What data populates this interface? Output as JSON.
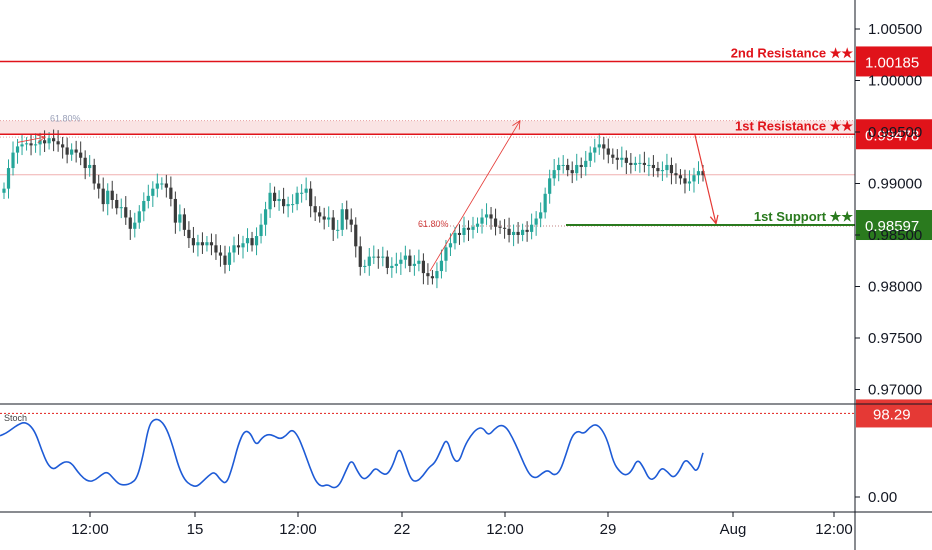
{
  "chart_data": {
    "type": "candlestick",
    "price_axis": {
      "ticks": [
        "1.00500",
        "1.00000",
        "0.99500",
        "0.99000",
        "0.98500",
        "0.98000",
        "0.97500",
        "0.97000"
      ],
      "tick_values": [
        1.005,
        1.0,
        0.995,
        0.99,
        0.985,
        0.98,
        0.975,
        0.97
      ],
      "range": [
        0.9688,
        1.0082
      ]
    },
    "time_axis": {
      "ticks": [
        "12:00",
        "15",
        "12:00",
        "22",
        "12:00",
        "29",
        "Aug",
        "12:00"
      ]
    },
    "levels": [
      {
        "name": "2nd Resistance ★★",
        "price": 1.00185,
        "tag": "1.00185",
        "color": "#e0131a"
      },
      {
        "name": "1st Resistance ★★",
        "price": 0.99478,
        "tag": "0.99478",
        "color": "#e0131a"
      },
      {
        "name": "1st Support ★★",
        "price": 0.98597,
        "tag": "0.98597",
        "color": "#2a7a1e"
      }
    ],
    "fib_labels": [
      "61.80%",
      "61.80%"
    ],
    "candles_close": [
      0.9895,
      0.9915,
      0.993,
      0.9936,
      0.9938,
      0.9939,
      0.9937,
      0.9938,
      0.9942,
      0.9939,
      0.9944,
      0.9941,
      0.9938,
      0.9935,
      0.9928,
      0.9933,
      0.993,
      0.9925,
      0.9915,
      0.9918,
      0.99,
      0.9895,
      0.988,
      0.9893,
      0.9884,
      0.9876,
      0.9877,
      0.9867,
      0.9856,
      0.9862,
      0.9873,
      0.9883,
      0.9888,
      0.9895,
      0.99,
      0.99,
      0.9896,
      0.9885,
      0.9862,
      0.987,
      0.9855,
      0.9847,
      0.984,
      0.9843,
      0.984,
      0.9843,
      0.984,
      0.9833,
      0.983,
      0.9821,
      0.9833,
      0.984,
      0.9838,
      0.9842,
      0.9847,
      0.984,
      0.9849,
      0.986,
      0.9875,
      0.9891,
      0.9883,
      0.9885,
      0.9878,
      0.988,
      0.988,
      0.9891,
      0.9891,
      0.9895,
      0.9878,
      0.9872,
      0.9868,
      0.9865,
      0.9867,
      0.9855,
      0.9855,
      0.9875,
      0.9865,
      0.986,
      0.9839,
      0.9819,
      0.982,
      0.9829,
      0.9829,
      0.9828,
      0.9829,
      0.9818,
      0.982,
      0.9822,
      0.9826,
      0.983,
      0.982,
      0.9822,
      0.9825,
      0.9813,
      0.981,
      0.9808,
      0.9815,
      0.9825,
      0.9838,
      0.9842,
      0.9852,
      0.985,
      0.9857,
      0.9855,
      0.9858,
      0.9861,
      0.9867,
      0.987,
      0.9866,
      0.9858,
      0.9857,
      0.9856,
      0.985,
      0.9853,
      0.985,
      0.9855,
      0.9853,
      0.986,
      0.9866,
      0.9872,
      0.989,
      0.9905,
      0.9913,
      0.9918,
      0.9918,
      0.9913,
      0.991,
      0.9918,
      0.9916,
      0.9922,
      0.993,
      0.9935,
      0.9938,
      0.9934,
      0.9928,
      0.9925,
      0.9923,
      0.9925,
      0.992,
      0.9918,
      0.992,
      0.992,
      0.9918,
      0.9918,
      0.9915,
      0.9912,
      0.9913,
      0.9918,
      0.991,
      0.9908,
      0.9905,
      0.99,
      0.9902,
      0.9908,
      0.9912,
      0.9908
    ],
    "projection": {
      "from": 0.991,
      "to": 0.986
    },
    "stoch": {
      "label": "Stoch",
      "level_tag": "98.29",
      "level": 98.29,
      "tick": "0.00",
      "values": [
        72,
        75,
        80,
        85,
        88,
        85,
        75,
        55,
        38,
        32,
        38,
        42,
        40,
        30,
        22,
        18,
        20,
        26,
        30,
        22,
        15,
        14,
        16,
        22,
        48,
        85,
        92,
        90,
        80,
        60,
        35,
        20,
        14,
        12,
        18,
        25,
        30,
        20,
        15,
        35,
        62,
        78,
        76,
        60,
        70,
        74,
        72,
        68,
        72,
        80,
        72,
        55,
        35,
        18,
        12,
        15,
        10,
        14,
        30,
        45,
        30,
        20,
        25,
        35,
        28,
        26,
        38,
        60,
        40,
        20,
        18,
        25,
        35,
        40,
        55,
        70,
        45,
        40,
        60,
        72,
        80,
        82,
        72,
        80,
        85,
        82,
        70,
        55,
        38,
        25,
        22,
        28,
        32,
        25,
        30,
        50,
        72,
        78,
        74,
        82,
        86,
        80,
        66,
        40,
        30,
        25,
        30,
        45,
        35,
        20,
        22,
        35,
        30,
        22,
        30,
        45,
        38,
        28,
        52
      ]
    }
  }
}
